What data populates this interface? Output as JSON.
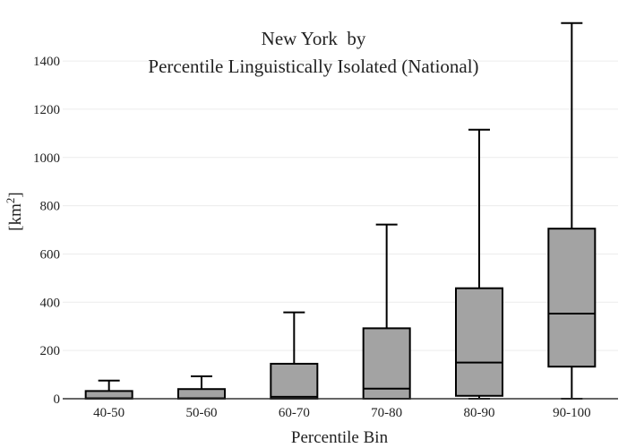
{
  "chart_data": {
    "type": "box",
    "title_lines": [
      "New York  by",
      "Percentile Linguistically Isolated (National)"
    ],
    "xlabel": "Percentile Bin",
    "ylabel_base": "[km",
    "ylabel_sup": "2",
    "ylabel_end": "]",
    "ylim": [
      0,
      1560
    ],
    "yticks": [
      0,
      200,
      400,
      600,
      800,
      1000,
      1200,
      1400
    ],
    "grid": true,
    "box_color": "#a3a3a3",
    "categories": [
      "40-50",
      "50-60",
      "60-70",
      "70-80",
      "80-90",
      "90-100"
    ],
    "boxes": [
      {
        "min": 0,
        "q1": 0,
        "median": 2,
        "q3": 32,
        "max": 75
      },
      {
        "min": 0,
        "q1": 0,
        "median": 2,
        "q3": 40,
        "max": 93
      },
      {
        "min": 0,
        "q1": 0,
        "median": 8,
        "q3": 145,
        "max": 358
      },
      {
        "min": 0,
        "q1": 0,
        "median": 42,
        "q3": 292,
        "max": 722
      },
      {
        "min": 0,
        "q1": 12,
        "median": 150,
        "q3": 458,
        "max": 1115
      },
      {
        "min": 0,
        "q1": 133,
        "median": 353,
        "q3": 705,
        "max": 1557
      }
    ]
  }
}
